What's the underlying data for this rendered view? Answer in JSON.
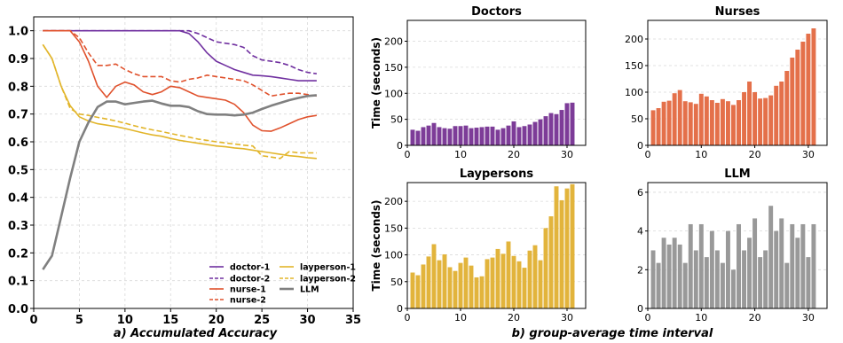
{
  "captions": {
    "left": "a) Accumulated Accuracy",
    "right": "b) group-average time interval"
  },
  "chart_data": [
    {
      "type": "line",
      "xlim": [
        0,
        35
      ],
      "ylim": [
        0.0,
        1.05
      ],
      "xticks": [
        0,
        5,
        10,
        15,
        20,
        25,
        30,
        35
      ],
      "yticks": [
        0.0,
        0.1,
        0.2,
        0.3,
        0.4,
        0.5,
        0.6,
        0.7,
        0.8,
        0.9,
        1.0
      ],
      "grid": true,
      "legend_position": "bottom-right",
      "series": [
        {
          "name": "doctor-1",
          "color": "#7030a0",
          "style": "solid",
          "width": 1.6,
          "x": [
            1,
            2,
            3,
            4,
            5,
            6,
            7,
            8,
            9,
            10,
            11,
            12,
            13,
            14,
            15,
            16,
            17,
            18,
            19,
            20,
            21,
            22,
            23,
            24,
            25,
            26,
            27,
            28,
            29,
            30,
            31
          ],
          "y": [
            1.0,
            1.0,
            1.0,
            1.0,
            1.0,
            1.0,
            1.0,
            1.0,
            1.0,
            1.0,
            1.0,
            1.0,
            1.0,
            1.0,
            1.0,
            1.0,
            0.99,
            0.96,
            0.92,
            0.89,
            0.875,
            0.86,
            0.85,
            0.84,
            0.838,
            0.835,
            0.83,
            0.825,
            0.82,
            0.82,
            0.82
          ]
        },
        {
          "name": "doctor-2",
          "color": "#7030a0",
          "style": "dashed",
          "width": 1.6,
          "x": [
            1,
            2,
            3,
            4,
            5,
            6,
            7,
            8,
            9,
            10,
            11,
            12,
            13,
            14,
            15,
            16,
            17,
            18,
            19,
            20,
            21,
            22,
            23,
            24,
            25,
            26,
            27,
            28,
            29,
            30,
            31
          ],
          "y": [
            1.0,
            1.0,
            1.0,
            1.0,
            1.0,
            1.0,
            1.0,
            1.0,
            1.0,
            1.0,
            1.0,
            1.0,
            1.0,
            1.0,
            1.0,
            1.0,
            1.0,
            0.99,
            0.975,
            0.96,
            0.955,
            0.95,
            0.94,
            0.91,
            0.895,
            0.89,
            0.885,
            0.875,
            0.86,
            0.85,
            0.845
          ]
        },
        {
          "name": "nurse-1",
          "color": "#e0522d",
          "style": "solid",
          "width": 1.6,
          "x": [
            1,
            2,
            3,
            4,
            5,
            6,
            7,
            8,
            9,
            10,
            11,
            12,
            13,
            14,
            15,
            16,
            17,
            18,
            19,
            20,
            21,
            22,
            23,
            24,
            25,
            26,
            27,
            28,
            29,
            30,
            31
          ],
          "y": [
            1.0,
            1.0,
            1.0,
            1.0,
            0.96,
            0.89,
            0.8,
            0.76,
            0.8,
            0.815,
            0.805,
            0.78,
            0.77,
            0.78,
            0.8,
            0.795,
            0.78,
            0.765,
            0.76,
            0.755,
            0.75,
            0.735,
            0.705,
            0.66,
            0.64,
            0.638,
            0.65,
            0.665,
            0.68,
            0.69,
            0.695
          ]
        },
        {
          "name": "nurse-2",
          "color": "#e0522d",
          "style": "dashed",
          "width": 1.6,
          "x": [
            1,
            2,
            3,
            4,
            5,
            6,
            7,
            8,
            9,
            10,
            11,
            12,
            13,
            14,
            15,
            16,
            17,
            18,
            19,
            20,
            21,
            22,
            23,
            24,
            25,
            26,
            27,
            28,
            29,
            30,
            31
          ],
          "y": [
            1.0,
            1.0,
            1.0,
            1.0,
            0.975,
            0.92,
            0.875,
            0.875,
            0.88,
            0.86,
            0.845,
            0.835,
            0.835,
            0.835,
            0.82,
            0.815,
            0.825,
            0.83,
            0.84,
            0.835,
            0.83,
            0.825,
            0.82,
            0.805,
            0.785,
            0.765,
            0.77,
            0.775,
            0.775,
            0.77,
            0.765
          ]
        },
        {
          "name": "layperson-1",
          "color": "#e2b52a",
          "style": "solid",
          "width": 1.6,
          "x": [
            1,
            2,
            3,
            4,
            5,
            6,
            7,
            8,
            9,
            10,
            11,
            12,
            13,
            14,
            15,
            16,
            17,
            18,
            19,
            20,
            21,
            22,
            23,
            24,
            25,
            26,
            27,
            28,
            29,
            30,
            31
          ],
          "y": [
            0.95,
            0.9,
            0.8,
            0.73,
            0.69,
            0.675,
            0.665,
            0.66,
            0.655,
            0.648,
            0.64,
            0.632,
            0.625,
            0.62,
            0.612,
            0.605,
            0.6,
            0.595,
            0.59,
            0.585,
            0.582,
            0.578,
            0.575,
            0.57,
            0.565,
            0.56,
            0.555,
            0.55,
            0.547,
            0.543,
            0.54
          ]
        },
        {
          "name": "layperson-2",
          "color": "#e2b52a",
          "style": "dashed",
          "width": 1.6,
          "x": [
            1,
            2,
            3,
            4,
            5,
            6,
            7,
            8,
            9,
            10,
            11,
            12,
            13,
            14,
            15,
            16,
            17,
            18,
            19,
            20,
            21,
            22,
            23,
            24,
            25,
            26,
            27,
            28,
            29,
            30,
            31
          ],
          "y": [
            0.95,
            0.9,
            0.8,
            0.72,
            0.7,
            0.695,
            0.688,
            0.682,
            0.675,
            0.667,
            0.658,
            0.65,
            0.643,
            0.637,
            0.63,
            0.623,
            0.617,
            0.61,
            0.605,
            0.6,
            0.596,
            0.592,
            0.588,
            0.585,
            0.55,
            0.545,
            0.54,
            0.565,
            0.56,
            0.56,
            0.56
          ]
        },
        {
          "name": "LLM",
          "color": "#808080",
          "style": "solid",
          "width": 2.6,
          "x": [
            1,
            2,
            3,
            4,
            5,
            6,
            7,
            8,
            9,
            10,
            11,
            12,
            13,
            14,
            15,
            16,
            17,
            18,
            19,
            20,
            21,
            22,
            23,
            24,
            25,
            26,
            27,
            28,
            29,
            30,
            31
          ],
          "y": [
            0.14,
            0.19,
            0.33,
            0.47,
            0.6,
            0.67,
            0.725,
            0.745,
            0.745,
            0.735,
            0.74,
            0.745,
            0.748,
            0.738,
            0.73,
            0.73,
            0.725,
            0.71,
            0.7,
            0.698,
            0.698,
            0.695,
            0.698,
            0.705,
            0.718,
            0.73,
            0.74,
            0.75,
            0.758,
            0.765,
            0.768
          ]
        }
      ]
    },
    {
      "type": "bar",
      "title": "Doctors",
      "ylabel": "Time (seconds)",
      "color": "#7d3c98",
      "xlim": [
        0,
        33.5
      ],
      "ylim": [
        0,
        240
      ],
      "xticks": [
        0,
        10,
        20,
        30
      ],
      "yticks": [
        0,
        50,
        100,
        150,
        200
      ],
      "x": [
        1,
        2,
        3,
        4,
        5,
        6,
        7,
        8,
        9,
        10,
        11,
        12,
        13,
        14,
        15,
        16,
        17,
        18,
        19,
        20,
        21,
        22,
        23,
        24,
        25,
        26,
        27,
        28,
        29,
        30,
        31
      ],
      "values": [
        30,
        28,
        35,
        38,
        43,
        35,
        33,
        32,
        37,
        37,
        38,
        33,
        34,
        35,
        36,
        36,
        30,
        33,
        38,
        46,
        35,
        37,
        40,
        45,
        50,
        56,
        62,
        60,
        68,
        81,
        82
      ]
    },
    {
      "type": "bar",
      "title": "Nurses",
      "color": "#e4704a",
      "xlim": [
        0,
        33.5
      ],
      "ylim": [
        0,
        235
      ],
      "xticks": [
        0,
        10,
        20,
        30
      ],
      "yticks": [
        0,
        50,
        100,
        150,
        200
      ],
      "x": [
        1,
        2,
        3,
        4,
        5,
        6,
        7,
        8,
        9,
        10,
        11,
        12,
        13,
        14,
        15,
        16,
        17,
        18,
        19,
        20,
        21,
        22,
        23,
        24,
        25,
        26,
        27,
        28,
        29,
        30,
        31
      ],
      "values": [
        66,
        70,
        82,
        84,
        98,
        104,
        83,
        81,
        78,
        97,
        92,
        85,
        80,
        87,
        83,
        76,
        85,
        100,
        120,
        100,
        88,
        89,
        94,
        112,
        120,
        140,
        165,
        180,
        195,
        210,
        220
      ]
    },
    {
      "type": "bar",
      "title": "Laypersons",
      "ylabel": "Time (seconds)",
      "color": "#e2b43c",
      "xlim": [
        0,
        33.5
      ],
      "ylim": [
        0,
        235
      ],
      "xticks": [
        0,
        10,
        20,
        30
      ],
      "yticks": [
        0,
        50,
        100,
        150,
        200
      ],
      "x": [
        1,
        2,
        3,
        4,
        5,
        6,
        7,
        8,
        9,
        10,
        11,
        12,
        13,
        14,
        15,
        16,
        17,
        18,
        19,
        20,
        21,
        22,
        23,
        24,
        25,
        26,
        27,
        28,
        29,
        30,
        31
      ],
      "values": [
        67,
        62,
        82,
        97,
        120,
        90,
        101,
        77,
        70,
        85,
        95,
        80,
        58,
        60,
        92,
        95,
        111,
        102,
        125,
        98,
        88,
        76,
        108,
        118,
        90,
        150,
        172,
        228,
        202,
        224,
        232
      ]
    },
    {
      "type": "bar",
      "title": "LLM",
      "color": "#999999",
      "xlim": [
        0,
        33.5
      ],
      "ylim": [
        0,
        6.5
      ],
      "xticks": [
        0,
        10,
        20,
        30
      ],
      "yticks": [
        0,
        2,
        4,
        6
      ],
      "x": [
        1,
        2,
        3,
        4,
        5,
        6,
        7,
        8,
        9,
        10,
        11,
        12,
        13,
        14,
        15,
        16,
        17,
        18,
        19,
        20,
        21,
        22,
        23,
        24,
        25,
        26,
        27,
        28,
        29,
        30,
        31
      ],
      "values": [
        3.0,
        2.35,
        3.65,
        3.3,
        3.65,
        3.3,
        2.35,
        4.35,
        3.0,
        4.35,
        2.65,
        4.0,
        3.0,
        2.35,
        4.0,
        2.0,
        4.35,
        3.0,
        3.65,
        4.65,
        2.65,
        3.0,
        5.3,
        4.0,
        4.65,
        2.35,
        4.35,
        3.65,
        4.35,
        2.65,
        4.35
      ]
    }
  ]
}
